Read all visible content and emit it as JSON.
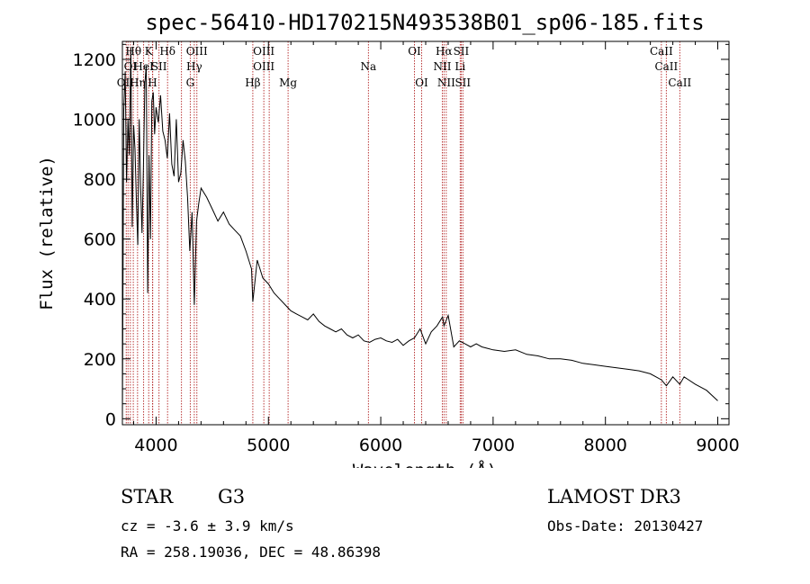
{
  "chart_data": {
    "type": "line",
    "title": "spec-56410-HD170215N493538B01_sp06-185.fits",
    "xlabel": "Wavelength (Å)",
    "ylabel": "Flux (relative)",
    "xlim": [
      3700,
      9100
    ],
    "ylim": [
      -20,
      1260
    ],
    "xticks": [
      4000,
      5000,
      6000,
      7000,
      8000,
      9000
    ],
    "yticks": [
      0,
      200,
      400,
      600,
      800,
      1000,
      1200
    ],
    "grid": false,
    "line_color": "#000000",
    "marker_color": "#b22222",
    "series": [
      {
        "x": [
          3700,
          3712,
          3725,
          3737,
          3750,
          3762,
          3775,
          3787,
          3800,
          3812,
          3825,
          3837,
          3850,
          3862,
          3875,
          3887,
          3900,
          3912,
          3925,
          3937,
          3950,
          3962,
          3975,
          3987,
          4000,
          4020,
          4040,
          4060,
          4080,
          4100,
          4120,
          4140,
          4160,
          4180,
          4200,
          4220,
          4240,
          4260,
          4280,
          4300,
          4320,
          4340,
          4360,
          4380,
          4400,
          4450,
          4500,
          4550,
          4600,
          4650,
          4700,
          4750,
          4800,
          4850,
          4861,
          4900,
          4950,
          5000,
          5050,
          5100,
          5150,
          5200,
          5250,
          5300,
          5350,
          5400,
          5450,
          5500,
          5550,
          5600,
          5650,
          5700,
          5750,
          5800,
          5850,
          5900,
          5950,
          6000,
          6050,
          6100,
          6150,
          6200,
          6250,
          6300,
          6350,
          6400,
          6450,
          6500,
          6550,
          6563,
          6600,
          6650,
          6700,
          6750,
          6800,
          6850,
          6900,
          6950,
          7000,
          7100,
          7200,
          7300,
          7400,
          7500,
          7600,
          7700,
          7800,
          7900,
          8000,
          8100,
          8200,
          8300,
          8400,
          8498,
          8542,
          8600,
          8662,
          8700,
          8800,
          8900,
          9000
        ],
        "y": [
          0,
          1030,
          1160,
          790,
          1000,
          880,
          1240,
          640,
          980,
          900,
          720,
          580,
          1000,
          780,
          620,
          830,
          1120,
          1180,
          420,
          880,
          600,
          1060,
          1090,
          950,
          1040,
          990,
          1080,
          960,
          930,
          870,
          1020,
          850,
          810,
          1000,
          790,
          820,
          930,
          860,
          740,
          560,
          690,
          380,
          660,
          720,
          770,
          740,
          700,
          660,
          690,
          650,
          630,
          610,
          560,
          500,
          390,
          530,
          470,
          450,
          420,
          400,
          380,
          360,
          350,
          340,
          330,
          350,
          325,
          310,
          300,
          290,
          300,
          280,
          270,
          280,
          260,
          255,
          265,
          270,
          260,
          255,
          265,
          245,
          260,
          270,
          300,
          250,
          290,
          310,
          340,
          310,
          345,
          240,
          260,
          250,
          240,
          250,
          240,
          235,
          230,
          225,
          230,
          215,
          210,
          200,
          200,
          195,
          185,
          180,
          175,
          170,
          165,
          160,
          150,
          130,
          110,
          140,
          115,
          140,
          115,
          95,
          60
        ]
      }
    ],
    "lines_x": [
      3734,
      3750,
      3771,
      3797,
      3835,
      3889,
      3934,
      3968,
      3970,
      4026,
      4102,
      4226,
      4304,
      4340,
      4363,
      4861,
      4959,
      5007,
      5175,
      5890,
      6300,
      6364,
      6548,
      6563,
      6583,
      6707,
      6716,
      6731,
      8498,
      8542,
      8662
    ],
    "line_labels": [
      {
        "text": "OII",
        "x": 3727,
        "row": 2
      },
      {
        "text": "Hθ",
        "x": 3798,
        "row": 0
      },
      {
        "text": "K",
        "x": 3934,
        "row": 0
      },
      {
        "text": "Hδ",
        "x": 4102,
        "row": 0
      },
      {
        "text": "OIII",
        "x": 4363,
        "row": 0
      },
      {
        "text": "OIII",
        "x": 4959,
        "row": 0
      },
      {
        "text": "OI",
        "x": 6300,
        "row": 0
      },
      {
        "text": "Hα",
        "x": 6563,
        "row": 0
      },
      {
        "text": "SII",
        "x": 6716,
        "row": 0
      },
      {
        "text": "CaII",
        "x": 8498,
        "row": 0
      },
      {
        "text": "OI",
        "x": 3771,
        "row": 1
      },
      {
        "text": "HeI",
        "x": 3889,
        "row": 1
      },
      {
        "text": "SII",
        "x": 4026,
        "row": 1
      },
      {
        "text": "Hγ",
        "x": 4340,
        "row": 1
      },
      {
        "text": "OIII",
        "x": 4959,
        "row": 1
      },
      {
        "text": "Na",
        "x": 5890,
        "row": 1
      },
      {
        "text": "NII",
        "x": 6548,
        "row": 1
      },
      {
        "text": "Li",
        "x": 6707,
        "row": 1
      },
      {
        "text": "CaII",
        "x": 8542,
        "row": 1
      },
      {
        "text": "Hη",
        "x": 3835,
        "row": 2
      },
      {
        "text": "H",
        "x": 3968,
        "row": 2
      },
      {
        "text": "G",
        "x": 4304,
        "row": 2
      },
      {
        "text": "Hβ",
        "x": 4861,
        "row": 2
      },
      {
        "text": "Mg",
        "x": 5175,
        "row": 2
      },
      {
        "text": "OI",
        "x": 6364,
        "row": 2
      },
      {
        "text": "NII",
        "x": 6583,
        "row": 2
      },
      {
        "text": "SII",
        "x": 6731,
        "row": 2
      },
      {
        "text": "CaII",
        "x": 8662,
        "row": 2
      }
    ]
  },
  "info": {
    "object_class": "STAR",
    "subclass": "G3",
    "survey": "LAMOST DR3",
    "cz": "cz = -3.6 ± 3.9 km/s",
    "obs_date": "Obs-Date: 20130427",
    "coords": "RA = 258.19036, DEC =  48.86398"
  }
}
